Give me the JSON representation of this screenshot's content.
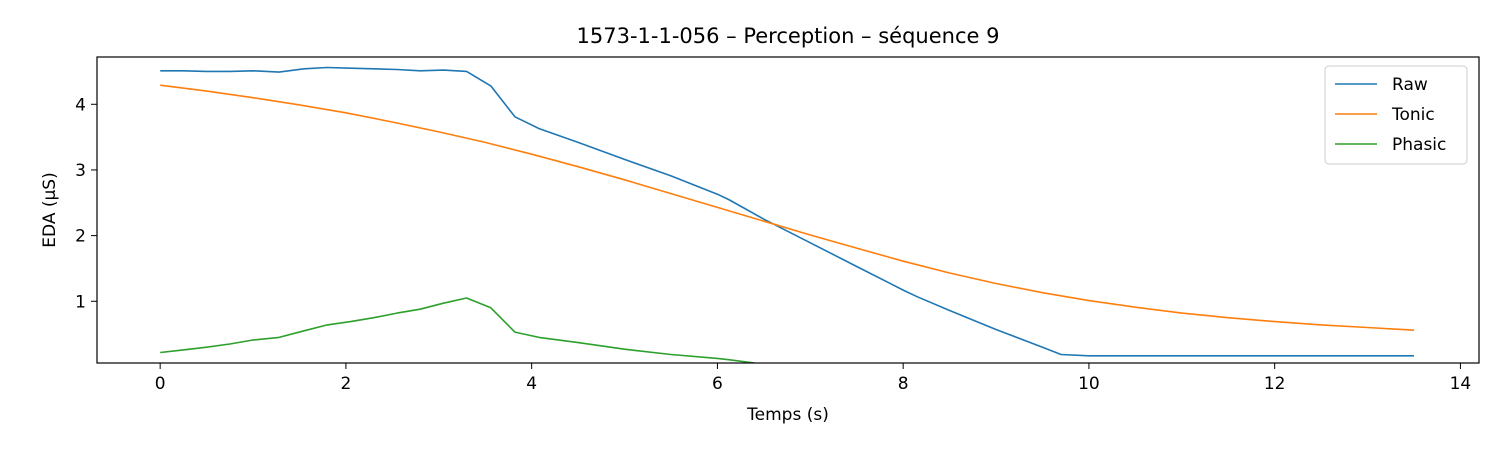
{
  "chart_data": {
    "type": "line",
    "title": "1573-1-1-056 – Perception – séquence 9",
    "xlabel": "Temps (s)",
    "ylabel": "EDA (µS)",
    "xlim": [
      -0.68,
      14.2
    ],
    "ylim": [
      0.06,
      4.72
    ],
    "xticks": [
      0,
      2,
      4,
      6,
      8,
      10,
      12,
      14
    ],
    "yticks": [
      1,
      2,
      3,
      4
    ],
    "grid": false,
    "legend": "top-right",
    "series": [
      {
        "name": "Raw",
        "color": "#1f77b4",
        "x": [
          0,
          0.25,
          0.5,
          0.75,
          1.0,
          1.28,
          1.55,
          1.8,
          2.05,
          2.3,
          2.55,
          2.8,
          3.05,
          3.3,
          3.56,
          3.82,
          4.08,
          4.5,
          5.0,
          5.5,
          6.0,
          6.12,
          6.5,
          7.0,
          7.5,
          8.0,
          8.15,
          8.5,
          9.0,
          9.5,
          9.7,
          10.0,
          10.5,
          11.0,
          11.5,
          12.0,
          12.5,
          13.0,
          13.5
        ],
        "y": [
          4.51,
          4.51,
          4.5,
          4.5,
          4.51,
          4.49,
          4.54,
          4.56,
          4.55,
          4.54,
          4.53,
          4.51,
          4.52,
          4.5,
          4.28,
          3.81,
          3.63,
          3.42,
          3.16,
          2.91,
          2.63,
          2.55,
          2.25,
          1.89,
          1.53,
          1.17,
          1.07,
          0.86,
          0.57,
          0.3,
          0.19,
          0.17,
          0.17,
          0.17,
          0.17,
          0.17,
          0.17,
          0.17,
          0.17
        ]
      },
      {
        "name": "Tonic",
        "color": "#ff7f0e",
        "x": [
          0,
          0.5,
          1.0,
          1.5,
          2.0,
          2.5,
          3.0,
          3.5,
          4.0,
          4.5,
          5.0,
          5.5,
          6.0,
          6.5,
          7.0,
          7.5,
          8.0,
          8.5,
          9.0,
          9.5,
          10.0,
          10.5,
          11.0,
          11.5,
          12.0,
          12.5,
          13.0,
          13.5
        ],
        "y": [
          4.29,
          4.2,
          4.1,
          3.99,
          3.87,
          3.73,
          3.58,
          3.42,
          3.24,
          3.05,
          2.85,
          2.64,
          2.43,
          2.22,
          2.01,
          1.81,
          1.61,
          1.43,
          1.27,
          1.13,
          1.01,
          0.91,
          0.82,
          0.75,
          0.69,
          0.64,
          0.6,
          0.56
        ]
      },
      {
        "name": "Phasic",
        "color": "#2ca02c",
        "x": [
          0,
          0.25,
          0.5,
          0.75,
          1.0,
          1.28,
          1.55,
          1.8,
          2.05,
          2.3,
          2.55,
          2.8,
          3.05,
          3.3,
          3.56,
          3.82,
          4.08,
          4.5,
          5.0,
          5.5,
          6.0,
          6.12,
          6.4
        ],
        "y": [
          0.22,
          0.26,
          0.3,
          0.35,
          0.41,
          0.45,
          0.55,
          0.64,
          0.69,
          0.75,
          0.82,
          0.88,
          0.97,
          1.05,
          0.9,
          0.53,
          0.45,
          0.37,
          0.27,
          0.19,
          0.13,
          0.11,
          0.06
        ]
      }
    ]
  }
}
